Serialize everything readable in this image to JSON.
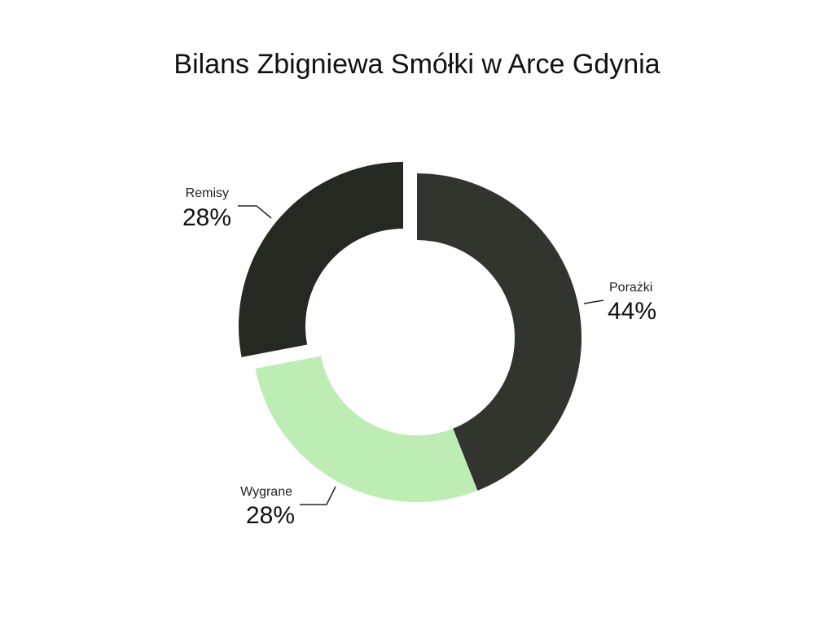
{
  "chart_data": {
    "type": "pie",
    "variant": "donut",
    "title": "Bilans Zbigniewa Smółki w Arce Gdynia",
    "slices": [
      {
        "label": "Porażki",
        "value": 44,
        "display": "44%",
        "color": "#32352e",
        "exploded": false
      },
      {
        "label": "Wygrane",
        "value": 28,
        "display": "28%",
        "color": "#bdedb5",
        "exploded": false
      },
      {
        "label": "Remisy",
        "value": 28,
        "display": "28%",
        "color": "#262922",
        "exploded": true
      }
    ],
    "start_angle": "12 o'clock, clockwise",
    "legend": "none"
  }
}
